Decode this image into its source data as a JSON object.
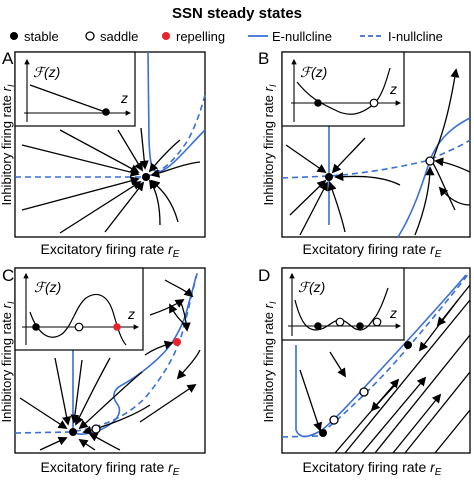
{
  "title": "SSN steady states",
  "legend": {
    "stable": "stable",
    "saddle": "saddle",
    "repelling": "repelling",
    "e_nullcline": "E-nullcline",
    "i_nullcline": "I-nullcline"
  },
  "colors": {
    "nullcline": "#3a6fd4",
    "repelling": "#e8232a",
    "ink": "#000000"
  },
  "axis": {
    "xlabel": "Excitatory firing rate",
    "xsub": "E",
    "ylabel": "Inhibitory firing rate",
    "ysub": "I",
    "var_r": "r"
  },
  "inset": {
    "ylabel": "ℱ(z)",
    "xlabel": "z"
  },
  "panels": [
    {
      "letter": "A"
    },
    {
      "letter": "B"
    },
    {
      "letter": "C"
    },
    {
      "letter": "D"
    }
  ]
}
